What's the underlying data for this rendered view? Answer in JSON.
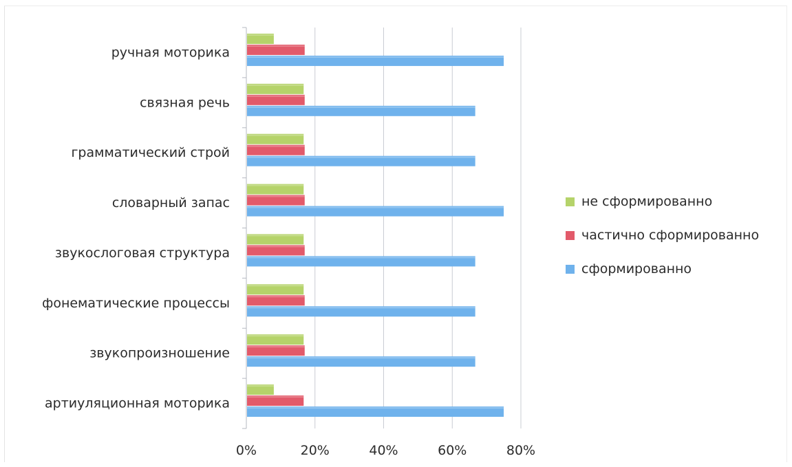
{
  "chart_data": {
    "type": "bar",
    "orientation": "horizontal",
    "categories": [
      "ручная моторика",
      "связная речь",
      "грамматический строй",
      "словарный запас",
      "звукослоговая структура",
      "фонематические процессы",
      "звукопроизношение",
      "артиуляционная моторика"
    ],
    "series": [
      {
        "name": "не сформированно",
        "color": "#b5d36a",
        "values": [
          8,
          16.7,
          16.7,
          16.7,
          16.7,
          16.7,
          16.7,
          8
        ]
      },
      {
        "name": "частично сформированно",
        "color": "#e25a6a",
        "values": [
          17,
          17,
          17,
          17,
          17,
          17,
          17,
          16.7
        ]
      },
      {
        "name": "сформированно",
        "color": "#6fb2ec",
        "values": [
          75,
          66.7,
          66.7,
          75,
          66.7,
          66.7,
          66.7,
          75
        ]
      }
    ],
    "xlim": [
      0,
      80
    ],
    "xticks": [
      "0%",
      "20%",
      "40%",
      "60%",
      "80%"
    ],
    "grid": true,
    "legend_position": "right"
  }
}
